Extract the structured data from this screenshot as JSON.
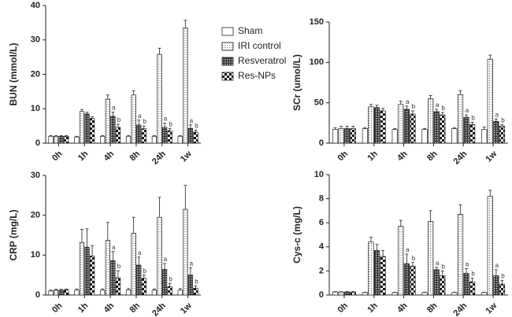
{
  "legend": [
    {
      "name": "Sham",
      "pattern": "plain"
    },
    {
      "name": "IRI control",
      "pattern": "dots"
    },
    {
      "name": "Resveratrol",
      "pattern": "checker"
    },
    {
      "name": "Res-NPs",
      "pattern": "bigchecker"
    }
  ],
  "chart_data": [
    {
      "type": "bar",
      "y_label": "BUN (mmol/L)",
      "categories": [
        "0h",
        "1h",
        "4h",
        "8h",
        "24h",
        "1w"
      ],
      "ylim": [
        0,
        40
      ],
      "yticks": [
        0,
        10,
        20,
        30,
        40
      ],
      "series": [
        {
          "values": [
            2,
            1.8,
            2,
            2,
            2,
            2
          ],
          "errors": [
            0.2,
            0.2,
            0.2,
            0.2,
            0.2,
            0.2
          ],
          "annotations": [
            null,
            null,
            null,
            null,
            null,
            null
          ]
        },
        {
          "values": [
            2,
            9.2,
            12.8,
            14,
            25.8,
            33.5
          ],
          "errors": [
            0.2,
            0.6,
            1.2,
            1.2,
            1.8,
            2.2
          ],
          "annotations": [
            null,
            null,
            null,
            null,
            null,
            null
          ]
        },
        {
          "values": [
            2,
            8.5,
            7.8,
            5.3,
            4.6,
            4.3
          ],
          "errors": [
            0.2,
            0.5,
            1.2,
            1.4,
            1.2,
            1.0
          ],
          "annotations": [
            null,
            null,
            "a",
            "a",
            "a",
            "a"
          ]
        },
        {
          "values": [
            2,
            7.2,
            4.6,
            4.2,
            3.6,
            3.2
          ],
          "errors": [
            0.2,
            0.5,
            0.9,
            0.8,
            0.7,
            0.6
          ],
          "annotations": [
            null,
            null,
            "b",
            "b",
            "b",
            "b"
          ]
        }
      ]
    },
    {
      "type": "bar",
      "y_label": "SCr (umol/L)",
      "categories": [
        "0h",
        "1h",
        "4h",
        "8h",
        "24h",
        "1w"
      ],
      "ylim": [
        0,
        150
      ],
      "yticks": [
        0,
        50,
        100,
        150
      ],
      "series": [
        {
          "values": [
            17,
            18,
            17,
            17,
            18,
            17
          ],
          "errors": [
            2,
            1,
            1,
            1,
            1,
            3
          ],
          "annotations": [
            null,
            null,
            null,
            null,
            null,
            null
          ]
        },
        {
          "values": [
            18,
            45,
            48,
            55,
            60,
            104
          ],
          "errors": [
            3,
            3,
            4,
            4,
            5,
            5
          ],
          "annotations": [
            null,
            null,
            null,
            null,
            null,
            null
          ]
        },
        {
          "values": [
            18,
            44,
            42,
            39,
            32,
            27
          ],
          "errors": [
            3,
            3,
            4,
            3,
            3,
            3
          ],
          "annotations": [
            null,
            null,
            "a",
            "a",
            "a",
            "a"
          ]
        },
        {
          "values": [
            18,
            40,
            36,
            35,
            23,
            21
          ],
          "errors": [
            3,
            3,
            4,
            3,
            3,
            2
          ],
          "annotations": [
            null,
            null,
            "b",
            "b",
            "b",
            "b"
          ]
        }
      ]
    },
    {
      "type": "bar",
      "y_label": "CRP (mg/L)",
      "categories": [
        "0h",
        "1h",
        "4h",
        "8h",
        "24h",
        "1w"
      ],
      "ylim": [
        0,
        30
      ],
      "yticks": [
        0,
        10,
        20,
        30
      ],
      "series": [
        {
          "values": [
            1,
            1.2,
            1.2,
            1.3,
            1.2,
            1.2
          ],
          "errors": [
            0.2,
            0.3,
            0.3,
            0.3,
            0.3,
            0.4
          ],
          "annotations": [
            null,
            null,
            null,
            null,
            null,
            null
          ]
        },
        {
          "values": [
            1.2,
            13.2,
            13.7,
            15.5,
            19.5,
            21.5
          ],
          "errors": [
            0.2,
            3.3,
            4.5,
            4,
            5,
            6
          ],
          "annotations": [
            null,
            null,
            null,
            null,
            null,
            null
          ]
        },
        {
          "values": [
            1.2,
            12,
            8.6,
            7.5,
            6.4,
            5
          ],
          "errors": [
            0.2,
            4.6,
            2.3,
            2,
            1.5,
            1.8
          ],
          "annotations": [
            null,
            null,
            "a",
            "a",
            "a",
            "a"
          ]
        },
        {
          "values": [
            1.3,
            9.8,
            4.3,
            4.2,
            2.1,
            1.7
          ],
          "errors": [
            0.2,
            2.6,
            1.8,
            0.8,
            0.8,
            0.6
          ],
          "annotations": [
            null,
            null,
            "b",
            "b",
            "b",
            "b"
          ]
        }
      ]
    },
    {
      "type": "bar",
      "y_label": "Cys-c (mg/L)",
      "categories": [
        "0h",
        "1h",
        "4h",
        "8h",
        "24h",
        "1w"
      ],
      "ylim": [
        0,
        10
      ],
      "yticks": [
        0,
        2,
        4,
        6,
        8,
        10
      ],
      "series": [
        {
          "values": [
            0.25,
            0.2,
            0.2,
            0.2,
            0.2,
            0.2
          ],
          "errors": [
            0.03,
            0.03,
            0.03,
            0.03,
            0.03,
            0.03
          ],
          "annotations": [
            null,
            null,
            null,
            null,
            null,
            null
          ]
        },
        {
          "values": [
            0.25,
            4.4,
            5.7,
            6.1,
            6.7,
            8.2
          ],
          "errors": [
            0.03,
            0.4,
            0.5,
            0.9,
            0.8,
            0.5
          ],
          "annotations": [
            null,
            null,
            null,
            null,
            null,
            null
          ]
        },
        {
          "values": [
            0.25,
            3.7,
            2.6,
            2.1,
            1.8,
            1.6
          ],
          "errors": [
            0.03,
            0.5,
            0.8,
            0.2,
            0.4,
            0.5
          ],
          "annotations": [
            null,
            null,
            "a",
            "a",
            "a",
            "a"
          ]
        },
        {
          "values": [
            0.25,
            3.2,
            2.4,
            1.6,
            1.1,
            0.9
          ],
          "errors": [
            0.03,
            0.5,
            0.3,
            0.4,
            0.3,
            0.3
          ],
          "annotations": [
            null,
            null,
            "b",
            "b",
            "b",
            "b"
          ]
        }
      ]
    }
  ]
}
